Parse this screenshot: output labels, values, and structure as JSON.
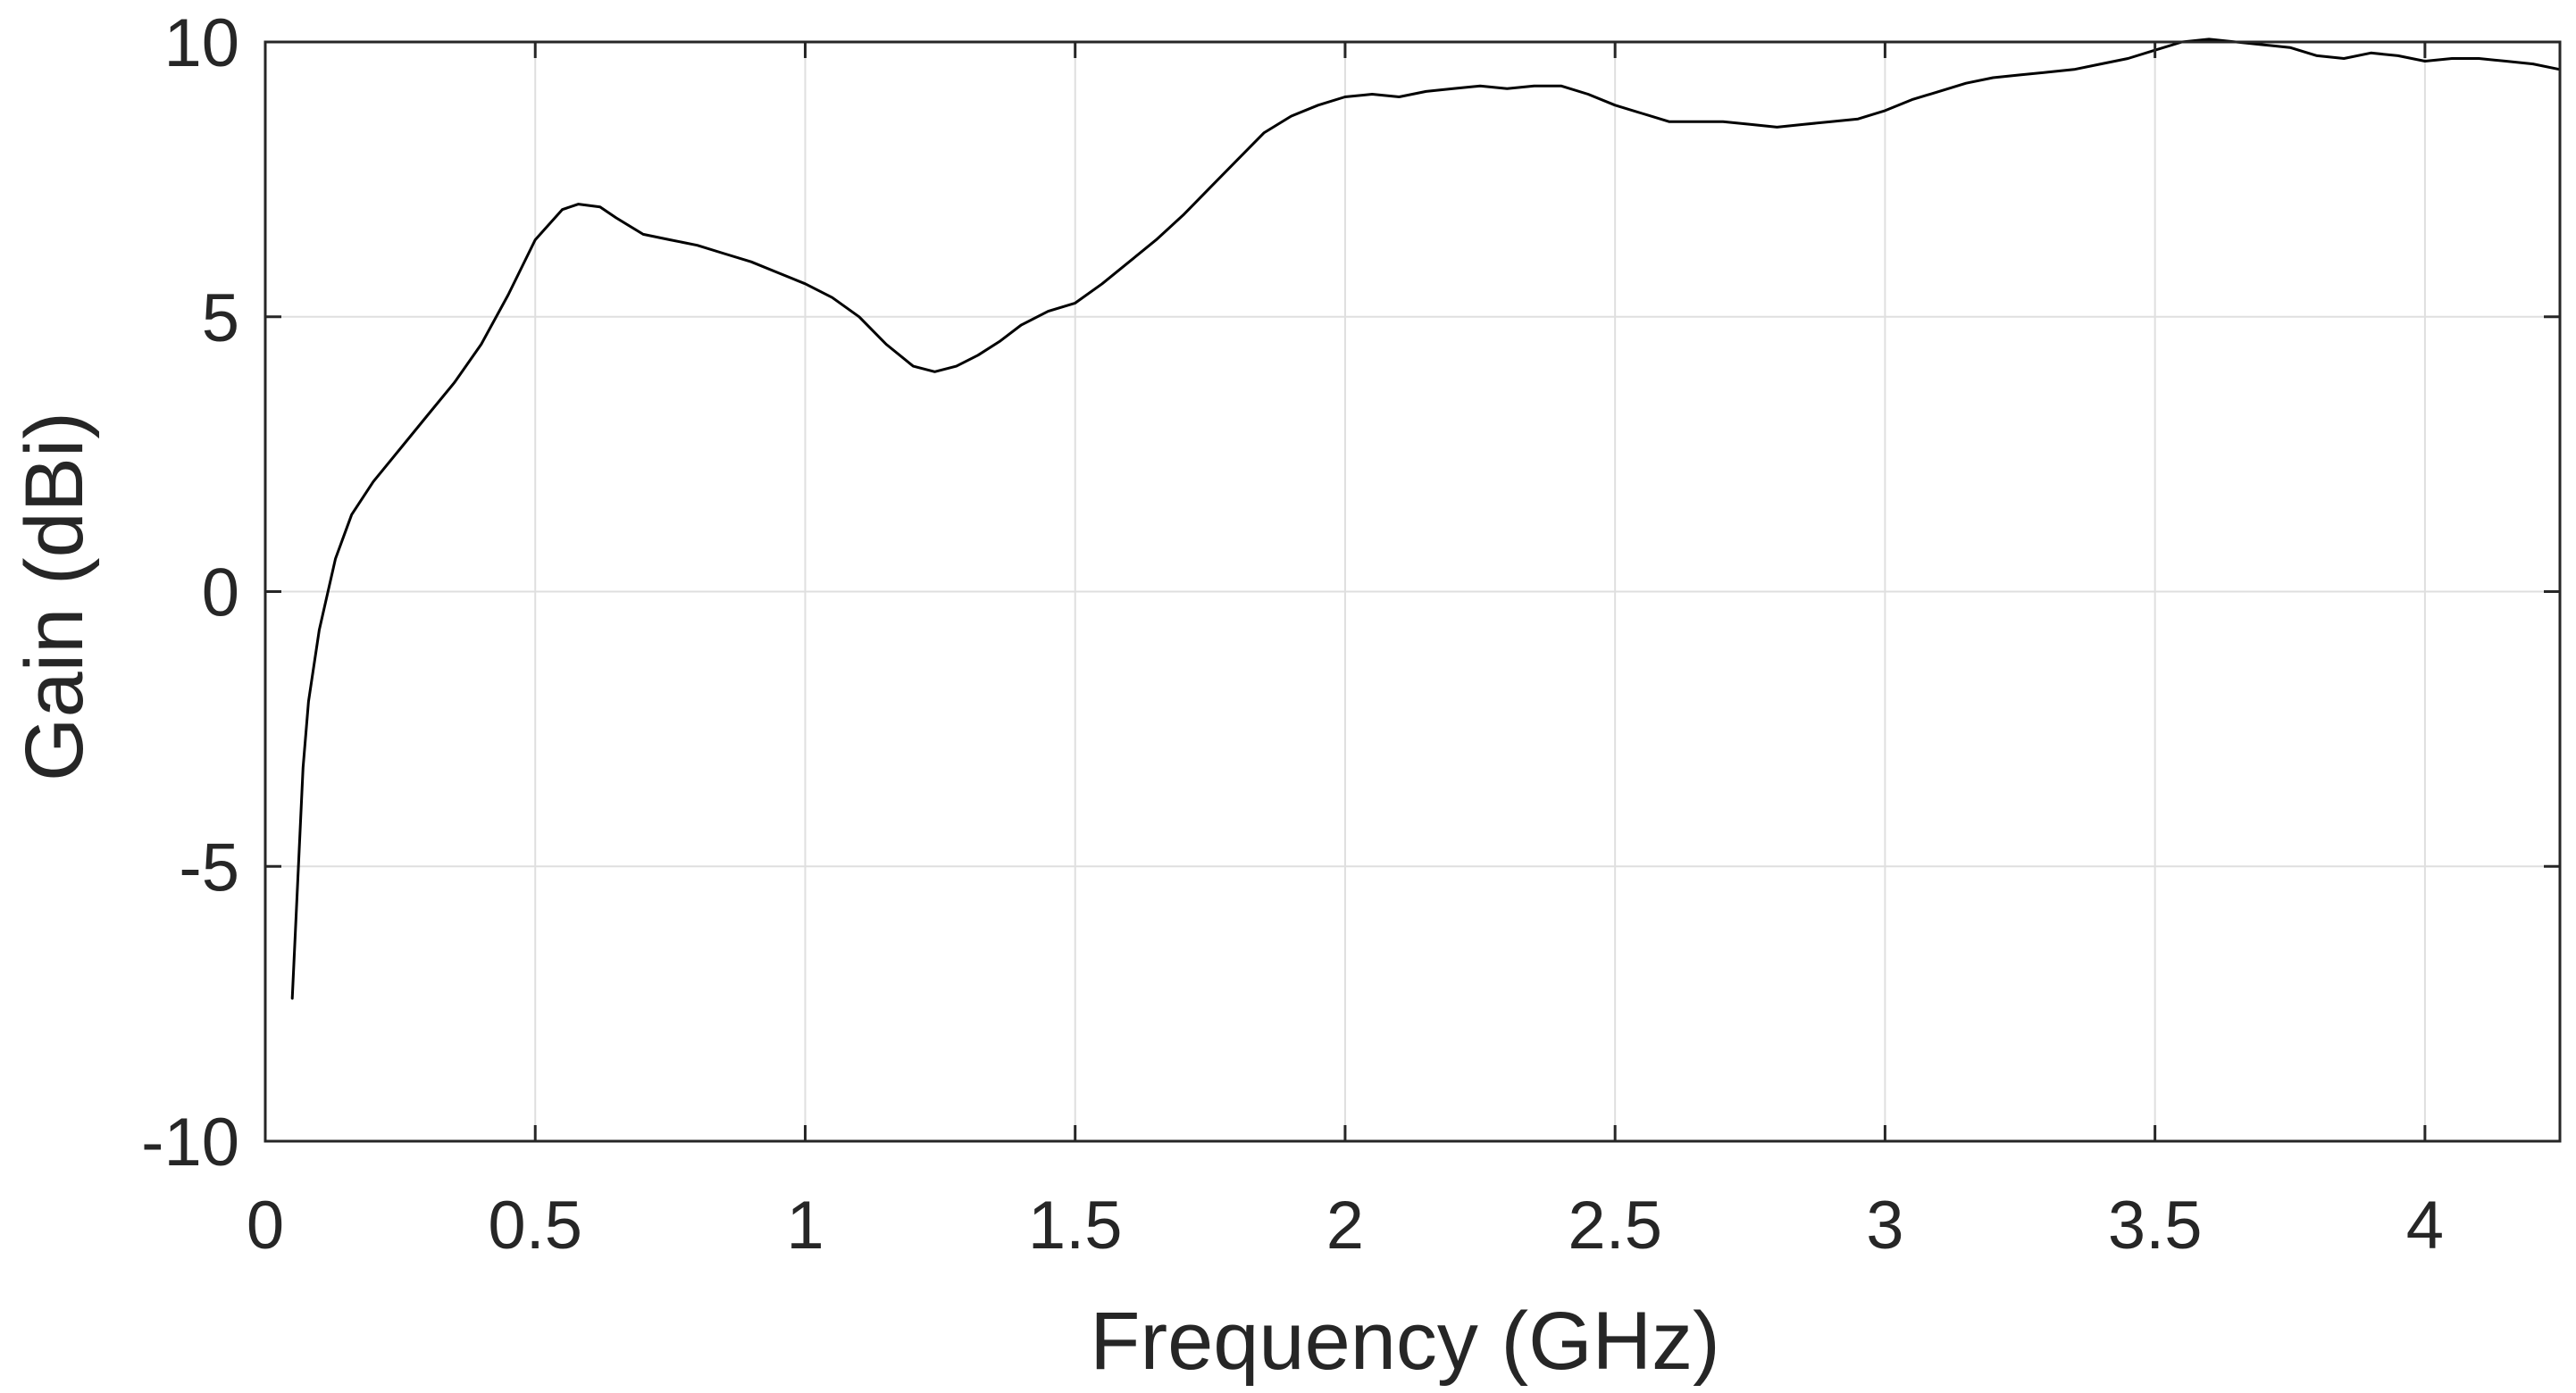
{
  "chart_data": {
    "type": "line",
    "title": "",
    "xlabel": "Frequency (GHz)",
    "ylabel": "Gain (dBi)",
    "xlim": [
      0,
      4.25
    ],
    "ylim": [
      -10,
      10
    ],
    "xticks": [
      0,
      0.5,
      1,
      1.5,
      2,
      2.5,
      3,
      3.5,
      4
    ],
    "xtick_labels": [
      "0",
      "0.5",
      "1",
      "1.5",
      "2",
      "2.5",
      "3",
      "3.5",
      "4"
    ],
    "yticks": [
      -10,
      -5,
      0,
      5,
      10
    ],
    "ytick_labels": [
      "-10",
      "-5",
      "0",
      "5",
      "10"
    ],
    "grid": true,
    "legend": "none",
    "line_color": "#000000",
    "series": [
      {
        "x": [
          0.05,
          0.07,
          0.08,
          0.1,
          0.13,
          0.16,
          0.2,
          0.25,
          0.3,
          0.35,
          0.4,
          0.45,
          0.5,
          0.55,
          0.58,
          0.62,
          0.65,
          0.7,
          0.75,
          0.8,
          0.85,
          0.9,
          0.95,
          1.0,
          1.05,
          1.1,
          1.15,
          1.2,
          1.24,
          1.28,
          1.32,
          1.36,
          1.4,
          1.45,
          1.5,
          1.55,
          1.6,
          1.65,
          1.7,
          1.75,
          1.8,
          1.85,
          1.9,
          1.95,
          2.0,
          2.05,
          2.1,
          2.15,
          2.2,
          2.25,
          2.3,
          2.35,
          2.4,
          2.45,
          2.5,
          2.55,
          2.6,
          2.65,
          2.7,
          2.75,
          2.8,
          2.85,
          2.9,
          2.95,
          3.0,
          3.05,
          3.1,
          3.15,
          3.2,
          3.25,
          3.3,
          3.35,
          3.4,
          3.45,
          3.5,
          3.55,
          3.6,
          3.65,
          3.7,
          3.75,
          3.8,
          3.85,
          3.9,
          3.95,
          4.0,
          4.05,
          4.1,
          4.15,
          4.2,
          4.25
        ],
        "y": [
          -7.4,
          -3.2,
          -2.0,
          -0.7,
          0.6,
          1.4,
          2.0,
          2.6,
          3.2,
          3.8,
          4.5,
          5.4,
          6.4,
          6.95,
          7.05,
          7.0,
          6.8,
          6.5,
          6.4,
          6.3,
          6.15,
          6.0,
          5.8,
          5.6,
          5.35,
          5.0,
          4.5,
          4.1,
          4.0,
          4.1,
          4.3,
          4.55,
          4.85,
          5.1,
          5.25,
          5.6,
          6.0,
          6.4,
          6.85,
          7.35,
          7.85,
          8.35,
          8.65,
          8.85,
          9.0,
          9.05,
          9.0,
          9.1,
          9.15,
          9.2,
          9.15,
          9.2,
          9.2,
          9.05,
          8.85,
          8.7,
          8.55,
          8.55,
          8.55,
          8.5,
          8.45,
          8.5,
          8.55,
          8.6,
          8.75,
          8.95,
          9.1,
          9.25,
          9.35,
          9.4,
          9.45,
          9.5,
          9.6,
          9.7,
          9.85,
          10.0,
          10.05,
          10.0,
          9.95,
          9.9,
          9.75,
          9.7,
          9.8,
          9.75,
          9.65,
          9.7,
          9.7,
          9.65,
          9.6,
          9.5
        ]
      }
    ]
  }
}
